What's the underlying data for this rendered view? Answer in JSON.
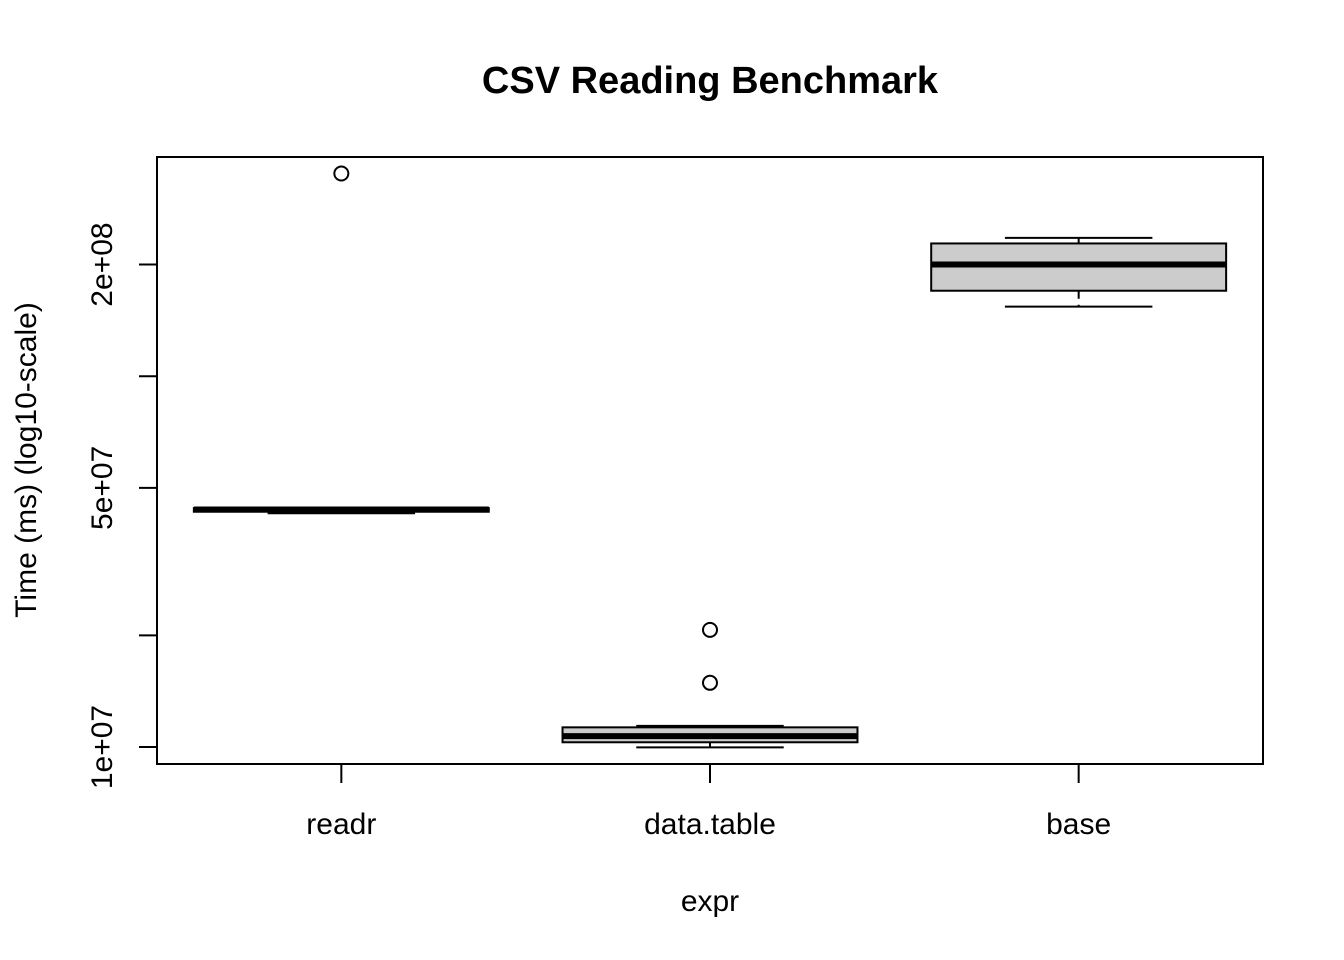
{
  "chart_data": {
    "type": "boxplot",
    "title": "CSV Reading Benchmark",
    "xlabel": "expr",
    "ylabel": "Time (ms) (log10-scale)",
    "y_scale": "log10",
    "ylim": [
      9000000,
      390000000
    ],
    "y_ticks": [
      {
        "value": 10000000,
        "label": "1e+07"
      },
      {
        "value": 20000000,
        "label": ""
      },
      {
        "value": 50000000,
        "label": "5e+07"
      },
      {
        "value": 100000000,
        "label": ""
      },
      {
        "value": 200000000,
        "label": "2e+08"
      }
    ],
    "categories": [
      "readr",
      "data.table",
      "base"
    ],
    "boxes": [
      {
        "name": "readr",
        "whisker_low": 42700000,
        "q1": 43100000,
        "median": 43700000,
        "q3": 44100000,
        "whisker_high": 44200000,
        "outliers": [
          352000000
        ]
      },
      {
        "name": "data.table",
        "whisker_low": 9980000,
        "q1": 10300000,
        "median": 10700000,
        "q3": 11300000,
        "whisker_high": 11400000,
        "outliers": [
          20700000,
          14900000
        ]
      },
      {
        "name": "base",
        "whisker_low": 154000000,
        "q1": 170000000,
        "median": 200000000,
        "q3": 228000000,
        "whisker_high": 236000000,
        "outliers": []
      }
    ],
    "box_fill": "#cccccc",
    "grid": false,
    "legend": "none"
  }
}
